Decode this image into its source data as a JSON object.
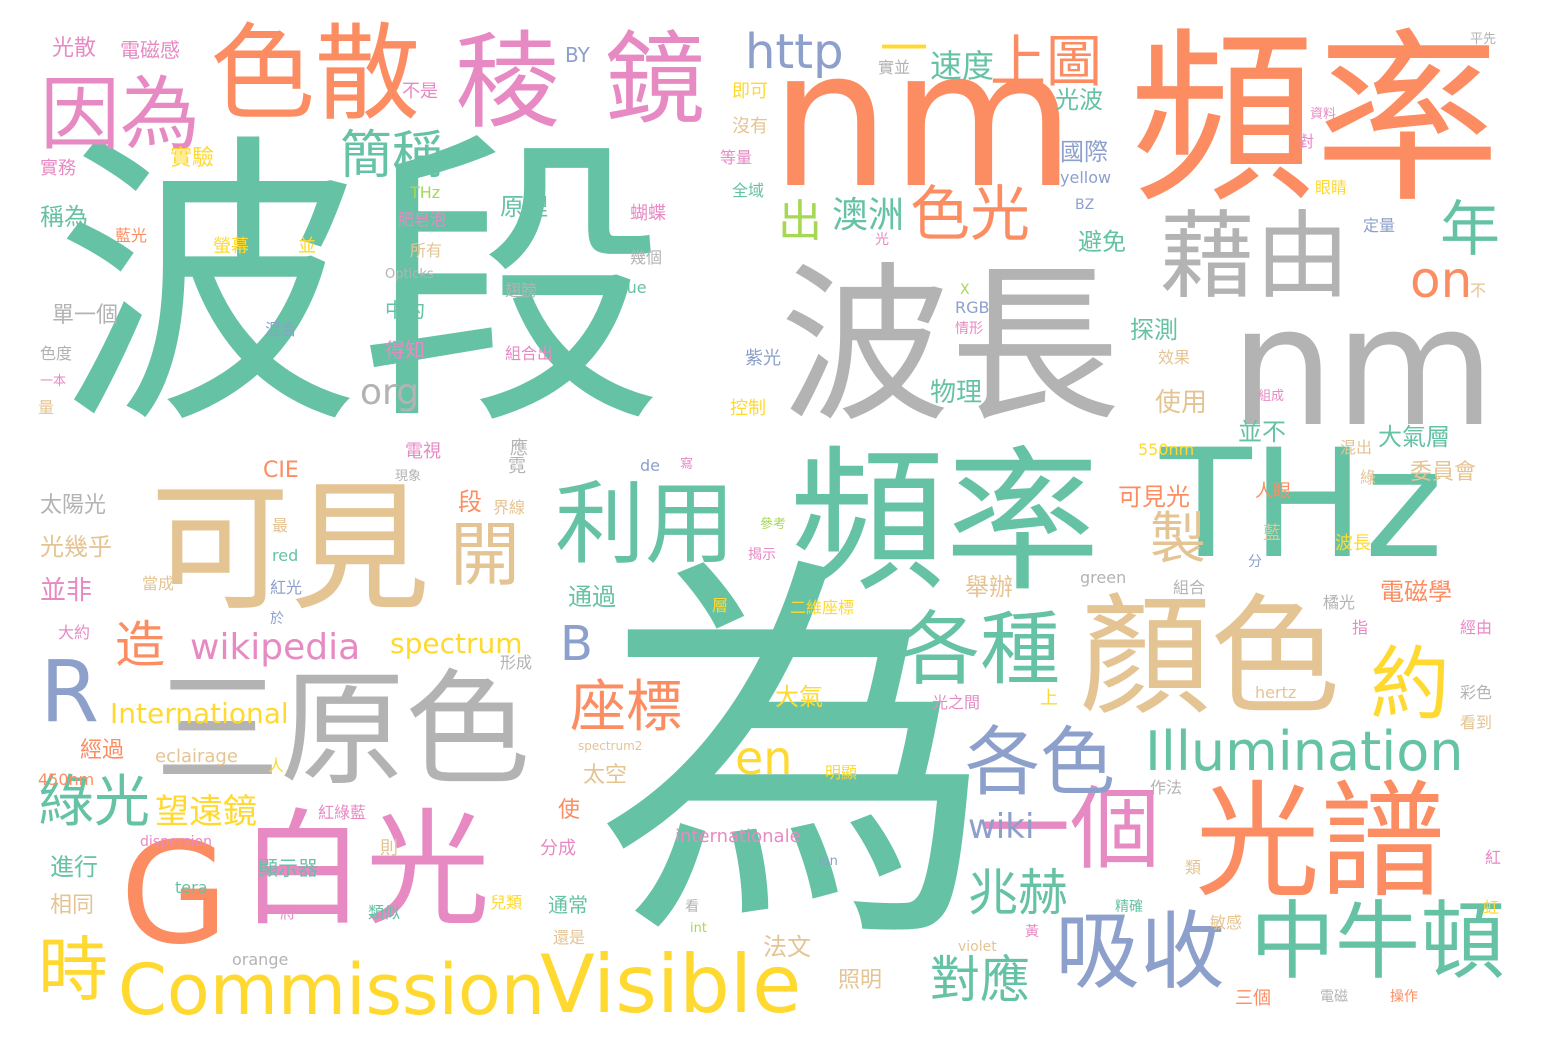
{
  "palette": {
    "teal": "#66c2a5",
    "orange": "#fc8d62",
    "blue": "#8da0cb",
    "pink": "#e78ac3",
    "green": "#a6d854",
    "yellow": "#ffd92f",
    "tan": "#e5c494",
    "gray": "#b3b3b3"
  },
  "words": [
    {
      "text": "波段",
      "color": "teal"
    },
    {
      "text": "為",
      "color": "teal"
    },
    {
      "text": "nm",
      "color": "orange"
    },
    {
      "text": "頻率",
      "color": "orange"
    },
    {
      "text": "nm",
      "color": "gray"
    },
    {
      "text": "波長",
      "color": "gray"
    },
    {
      "text": "頻率",
      "color": "teal"
    },
    {
      "text": "THz",
      "color": "teal"
    },
    {
      "text": "可見",
      "color": "tan"
    },
    {
      "text": "三原色",
      "color": "gray"
    },
    {
      "text": "顏色",
      "color": "tan"
    },
    {
      "text": "光譜",
      "color": "orange"
    },
    {
      "text": "白光",
      "color": "pink"
    },
    {
      "text": "G",
      "color": "orange"
    },
    {
      "text": "藉由",
      "color": "gray"
    },
    {
      "text": "色散",
      "color": "orange"
    },
    {
      "text": "稜",
      "color": "pink"
    },
    {
      "text": "鏡",
      "color": "pink"
    },
    {
      "text": "因為",
      "color": "pink"
    },
    {
      "text": "利用",
      "color": "teal"
    },
    {
      "text": "各種",
      "color": "teal"
    },
    {
      "text": "一個",
      "color": "pink"
    },
    {
      "text": "中牛頓",
      "color": "teal"
    },
    {
      "text": "吸收",
      "color": "blue"
    },
    {
      "text": "Visible",
      "color": "yellow"
    },
    {
      "text": "Commission",
      "color": "yellow"
    },
    {
      "text": "R",
      "color": "blue"
    },
    {
      "text": "各色",
      "color": "blue"
    },
    {
      "text": "約",
      "color": "yellow"
    },
    {
      "text": "Illumination",
      "color": "teal"
    },
    {
      "text": "色光",
      "color": "orange"
    },
    {
      "text": "http",
      "color": "blue"
    },
    {
      "text": "上圖",
      "color": "orange"
    },
    {
      "text": "開",
      "color": "tan"
    },
    {
      "text": "年",
      "color": "teal"
    },
    {
      "text": "簡稱",
      "color": "teal"
    },
    {
      "text": "時",
      "color": "yellow"
    },
    {
      "text": "製",
      "color": "tan"
    },
    {
      "text": "座標",
      "color": "orange"
    },
    {
      "text": "綠光",
      "color": "teal"
    },
    {
      "text": "兆赫",
      "color": "teal"
    },
    {
      "text": "對應",
      "color": "teal"
    },
    {
      "text": "on",
      "color": "orange"
    },
    {
      "text": "en",
      "color": "yellow"
    },
    {
      "text": "wikipedia",
      "color": "pink"
    },
    {
      "text": "B",
      "color": "blue"
    },
    {
      "text": "造",
      "color": "orange"
    },
    {
      "text": "一",
      "color": "yellow"
    },
    {
      "text": "出",
      "color": "green"
    },
    {
      "text": "澳洲",
      "color": "teal"
    },
    {
      "text": "速度",
      "color": "teal"
    },
    {
      "text": "wiki",
      "color": "blue"
    },
    {
      "text": "org",
      "color": "gray"
    },
    {
      "text": "望遠鏡",
      "color": "yellow"
    },
    {
      "text": "International",
      "color": "yellow"
    },
    {
      "text": "spectrum",
      "color": "yellow"
    },
    {
      "text": "實驗",
      "color": "yellow"
    },
    {
      "text": "光散",
      "color": "pink"
    },
    {
      "text": "電磁感",
      "color": "pink"
    },
    {
      "text": "BY",
      "color": "blue"
    },
    {
      "text": "實並",
      "color": "gray"
    },
    {
      "text": "平先",
      "color": "gray"
    },
    {
      "text": "不是",
      "color": "pink"
    },
    {
      "text": "即可",
      "color": "yellow"
    },
    {
      "text": "沒有",
      "color": "tan"
    },
    {
      "text": "資料",
      "color": "pink"
    },
    {
      "text": "對",
      "color": "pink"
    },
    {
      "text": "實務",
      "color": "pink"
    },
    {
      "text": "等量",
      "color": "pink"
    },
    {
      "text": "THz",
      "color": "green"
    },
    {
      "text": "全域",
      "color": "teal"
    },
    {
      "text": "yellow",
      "color": "blue"
    },
    {
      "text": "眼睛",
      "color": "yellow"
    },
    {
      "text": "稱為",
      "color": "teal"
    },
    {
      "text": "肥皂泡",
      "color": "pink"
    },
    {
      "text": "BZ",
      "color": "blue"
    },
    {
      "text": "原理",
      "color": "teal"
    },
    {
      "text": "蝴蝶",
      "color": "pink"
    },
    {
      "text": "藍光",
      "color": "orange"
    },
    {
      "text": "光",
      "color": "pink"
    },
    {
      "text": "定量",
      "color": "blue"
    },
    {
      "text": "螢幕",
      "color": "yellow"
    },
    {
      "text": "並",
      "color": "yellow"
    },
    {
      "text": "所有",
      "color": "tan"
    },
    {
      "text": "幾個",
      "color": "gray"
    },
    {
      "text": "Opticks",
      "color": "gray"
    },
    {
      "text": "翅膀",
      "color": "gray"
    },
    {
      "text": "blue",
      "color": "teal"
    },
    {
      "text": "不",
      "color": "tan"
    },
    {
      "text": "X",
      "color": "green"
    },
    {
      "text": "RGB",
      "color": "blue"
    },
    {
      "text": "單一個",
      "color": "gray"
    },
    {
      "text": "中約",
      "color": "teal"
    },
    {
      "text": "混合",
      "color": "blue"
    },
    {
      "text": "情形",
      "color": "pink"
    },
    {
      "text": "色度",
      "color": "gray"
    },
    {
      "text": "得知",
      "color": "pink"
    },
    {
      "text": "組合出",
      "color": "pink"
    },
    {
      "text": "紫光",
      "color": "blue"
    },
    {
      "text": "效果",
      "color": "tan"
    },
    {
      "text": "一本",
      "color": "pink"
    },
    {
      "text": "量",
      "color": "tan"
    },
    {
      "text": "物理",
      "color": "teal"
    },
    {
      "text": "組成",
      "color": "pink"
    },
    {
      "text": "控制",
      "color": "yellow"
    },
    {
      "text": "使用",
      "color": "tan"
    },
    {
      "text": "電視",
      "color": "pink"
    },
    {
      "text": "應",
      "color": "gray"
    },
    {
      "text": "並不",
      "color": "teal"
    },
    {
      "text": "大氣層",
      "color": "teal"
    },
    {
      "text": "混出",
      "color": "tan"
    },
    {
      "text": "CIE",
      "color": "orange"
    },
    {
      "text": "現象",
      "color": "gray"
    },
    {
      "text": "霓",
      "color": "gray"
    },
    {
      "text": "寫",
      "color": "pink"
    },
    {
      "text": "de",
      "color": "blue"
    },
    {
      "text": "550nm",
      "color": "yellow"
    },
    {
      "text": "委員會",
      "color": "tan"
    },
    {
      "text": "綠",
      "color": "tan"
    },
    {
      "text": "太陽光",
      "color": "gray"
    },
    {
      "text": "段",
      "color": "orange"
    },
    {
      "text": "界線",
      "color": "tan"
    },
    {
      "text": "可見光",
      "color": "orange"
    },
    {
      "text": "人眼",
      "color": "orange"
    },
    {
      "text": "最",
      "color": "tan"
    },
    {
      "text": "參考",
      "color": "green"
    },
    {
      "text": "藍",
      "color": "tan"
    },
    {
      "text": "光幾乎",
      "color": "tan"
    },
    {
      "text": "red",
      "color": "teal"
    },
    {
      "text": "揭示",
      "color": "pink"
    },
    {
      "text": "波長",
      "color": "yellow"
    },
    {
      "text": "分",
      "color": "blue"
    },
    {
      "text": "並非",
      "color": "pink"
    },
    {
      "text": "當成",
      "color": "tan"
    },
    {
      "text": "紅光",
      "color": "blue"
    },
    {
      "text": "green",
      "color": "gray"
    },
    {
      "text": "舉辦",
      "color": "tan"
    },
    {
      "text": "組合",
      "color": "gray"
    },
    {
      "text": "通過",
      "color": "teal"
    },
    {
      "text": "電磁學",
      "color": "orange"
    },
    {
      "text": "橘光",
      "color": "gray"
    },
    {
      "text": "層",
      "color": "yellow"
    },
    {
      "text": "二維座標",
      "color": "yellow"
    },
    {
      "text": "大約",
      "color": "pink"
    },
    {
      "text": "指",
      "color": "pink"
    },
    {
      "text": "於",
      "color": "blue"
    },
    {
      "text": "經由",
      "color": "pink"
    },
    {
      "text": "形成",
      "color": "gray"
    },
    {
      "text": "大氣",
      "color": "yellow"
    },
    {
      "text": "hertz",
      "color": "tan"
    },
    {
      "text": "彩色",
      "color": "gray"
    },
    {
      "text": "光之間",
      "color": "pink"
    },
    {
      "text": "上",
      "color": "yellow"
    },
    {
      "text": "看到",
      "color": "tan"
    },
    {
      "text": "經過",
      "color": "orange"
    },
    {
      "text": "eclairage",
      "color": "tan"
    },
    {
      "text": "人",
      "color": "yellow"
    },
    {
      "text": "spectrum2",
      "color": "tan"
    },
    {
      "text": "450nm",
      "color": "orange"
    },
    {
      "text": "太空",
      "color": "tan"
    },
    {
      "text": "明顯",
      "color": "yellow"
    },
    {
      "text": "作法",
      "color": "gray"
    },
    {
      "text": "使",
      "color": "orange"
    },
    {
      "text": "紅綠藍",
      "color": "pink"
    },
    {
      "text": "internationale",
      "color": "pink"
    },
    {
      "text": "dispersion",
      "color": "pink"
    },
    {
      "text": "分成",
      "color": "pink"
    },
    {
      "text": "則",
      "color": "tan"
    },
    {
      "text": "進行",
      "color": "teal"
    },
    {
      "text": "顯示器",
      "color": "teal"
    },
    {
      "text": "ion",
      "color": "blue"
    },
    {
      "text": "紅",
      "color": "pink"
    },
    {
      "text": "類",
      "color": "tan"
    },
    {
      "text": "tera",
      "color": "teal"
    },
    {
      "text": "相同",
      "color": "tan"
    },
    {
      "text": "兒類",
      "color": "yellow"
    },
    {
      "text": "精確",
      "color": "teal"
    },
    {
      "text": "將",
      "color": "pink"
    },
    {
      "text": "類似",
      "color": "teal"
    },
    {
      "text": "看",
      "color": "gray"
    },
    {
      "text": "通常",
      "color": "teal"
    },
    {
      "text": "int",
      "color": "green"
    },
    {
      "text": "敏感",
      "color": "tan"
    },
    {
      "text": "虹",
      "color": "yellow"
    },
    {
      "text": "還是",
      "color": "tan"
    },
    {
      "text": "黃",
      "color": "pink"
    },
    {
      "text": "violet",
      "color": "tan"
    },
    {
      "text": "法文",
      "color": "tan"
    },
    {
      "text": "orange",
      "color": "gray"
    },
    {
      "text": "照明",
      "color": "tan"
    },
    {
      "text": "三個",
      "color": "orange"
    },
    {
      "text": "電磁",
      "color": "gray"
    },
    {
      "text": "操作",
      "color": "orange"
    },
    {
      "text": "探測",
      "color": "teal"
    },
    {
      "text": "避免",
      "color": "teal"
    },
    {
      "text": "國際",
      "color": "blue"
    },
    {
      "text": "光波",
      "color": "teal"
    }
  ]
}
